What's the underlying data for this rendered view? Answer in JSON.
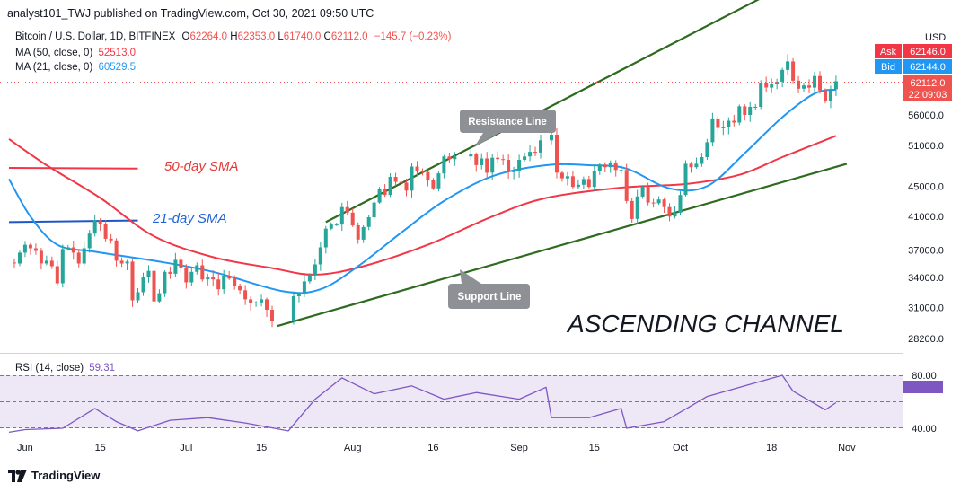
{
  "header": {
    "publisher": "analyst101_TWJ published on TradingView.com, Oct 30, 2021 09:50 UTC"
  },
  "symbol_line": {
    "name": "Bitcoin / U.S. Dollar, 1D, BITFINEX",
    "open_label": "O",
    "open": "62264.0",
    "high_label": "H",
    "high": "62353.0",
    "low_label": "L",
    "low": "61740.0",
    "close_label": "C",
    "close": "62112.0",
    "change": "−145.7 (−0.23%)"
  },
  "indicators": [
    {
      "label": "MA (50, close, 0)",
      "value": "52513.0",
      "color": "#f23645"
    },
    {
      "label": "MA (21, close, 0)",
      "value": "60529.5",
      "color": "#2196f3"
    }
  ],
  "rsi": {
    "label": "RSI (14, close)",
    "value": "59.31",
    "color": "#7e57c2",
    "levels": [
      "80.00",
      "40.00"
    ]
  },
  "currency": "USD",
  "quotes": {
    "ask_label": "Ask",
    "ask": "62146.0",
    "bid_label": "Bid",
    "bid": "62144.0",
    "last": "62112.0",
    "countdown": "22:09:03"
  },
  "annotations": {
    "sma50": "50-day SMA",
    "sma21": "21-day SMA",
    "resistance": "Resistance Line",
    "support": "Support Line",
    "title": "ASCENDING CHANNEL"
  },
  "colors": {
    "up": "#26a69a",
    "down": "#ef5350",
    "channel": "#2e6b1f",
    "ma50": "#f23645",
    "ma21": "#2196f3",
    "rsi": "#7e57c2",
    "rsi_band": "#ede7f6",
    "ask": "#f23645",
    "bid": "#2196f3"
  },
  "footer": {
    "brand": "TradingView"
  },
  "chart_data": {
    "type": "candlestick",
    "title": "Bitcoin / U.S. Dollar, 1D, BITFINEX",
    "y_ticks": [
      28200,
      31000,
      34000,
      37000,
      41000,
      45000,
      51000,
      56000
    ],
    "x_ticks": [
      "Jun",
      "15",
      "Jul",
      "15",
      "Aug",
      "16",
      "Sep",
      "15",
      "Oct",
      "18",
      "Nov"
    ],
    "rsi_ticks": [
      80,
      40
    ],
    "segments": [
      {
        "from": "2021-05-29",
        "to": "2021-06-14",
        "closes": [
          35600,
          35500,
          36700,
          37600,
          37200,
          36900,
          35500,
          35800,
          35200,
          33400,
          37100,
          37300,
          36700,
          35500,
          37200,
          38900,
          40500
        ]
      },
      {
        "from": "2021-06-14",
        "to": "2021-07-20",
        "closes": [
          40500,
          40100,
          38300,
          38100,
          35800,
          35500,
          35700,
          31700,
          32500,
          34000,
          34700,
          31600,
          32400,
          34600,
          34400,
          35900,
          35000,
          33500,
          34600,
          35300,
          33800,
          34100,
          33800,
          32800,
          34200,
          33900,
          33100,
          32700,
          31800,
          31400,
          31500,
          31800,
          30800,
          29800
        ]
      },
      {
        "from": "2021-07-20",
        "to": "2021-08-22",
        "closes": [
          29800,
          32100,
          32300,
          33600,
          34300,
          35400,
          37300,
          39500,
          40000,
          40000,
          42200,
          41500,
          39900,
          38200,
          39700,
          40900,
          42800,
          44600,
          43800,
          46300,
          45600,
          45500,
          44400,
          47800,
          47100,
          47000,
          45900,
          44700,
          46800,
          49300,
          48900,
          49300
        ]
      },
      {
        "from": "2021-08-22",
        "to": "2021-09-06",
        "closes": [
          49300,
          49600,
          48000,
          49000,
          46900,
          49100,
          48900,
          48800,
          47000,
          47100,
          48800,
          49300,
          50000,
          49900,
          51800
        ]
      },
      {
        "from": "2021-09-06",
        "to": "2021-09-28",
        "closes": [
          51800,
          52700,
          46900,
          46100,
          46400,
          44900,
          45200,
          46000,
          44900,
          47100,
          48100,
          47700,
          48300,
          47300,
          47300,
          43000,
          40700,
          43600,
          44900,
          42800,
          42700,
          43200,
          42200
        ]
      },
      {
        "from": "2021-09-28",
        "to": "2021-10-20",
        "closes": [
          42200,
          41000,
          41500,
          43800,
          48200,
          47700,
          48200,
          49200,
          51500,
          55400,
          53800,
          53900,
          55000,
          54700,
          57500,
          56000,
          57400,
          57400,
          61700,
          60900,
          61500,
          62000,
          64300
        ]
      },
      {
        "from": "2021-10-20",
        "to": "2021-10-30",
        "closes": [
          64300,
          66000,
          62200,
          60700,
          61300,
          60900,
          63100,
          60400,
          58400,
          60600,
          62100
        ]
      }
    ],
    "ma21": [
      {
        "date": "2021-05-29",
        "value": 46000
      },
      {
        "date": "2021-06-02",
        "value": 41000
      },
      {
        "date": "2021-06-07",
        "value": 37600
      },
      {
        "date": "2021-06-14",
        "value": 36800
      },
      {
        "date": "2021-06-25",
        "value": 35800
      },
      {
        "date": "2021-07-06",
        "value": 34600
      },
      {
        "date": "2021-07-19",
        "value": 32600
      },
      {
        "date": "2021-07-26",
        "value": 32800
      },
      {
        "date": "2021-08-02",
        "value": 35200
      },
      {
        "date": "2021-08-10",
        "value": 39000
      },
      {
        "date": "2021-08-18",
        "value": 43000
      },
      {
        "date": "2021-08-27",
        "value": 46400
      },
      {
        "date": "2021-09-06",
        "value": 48000
      },
      {
        "date": "2021-09-14",
        "value": 48000
      },
      {
        "date": "2021-09-21",
        "value": 47500
      },
      {
        "date": "2021-09-29",
        "value": 44700
      },
      {
        "date": "2021-10-06",
        "value": 45000
      },
      {
        "date": "2021-10-13",
        "value": 49800
      },
      {
        "date": "2021-10-20",
        "value": 55600
      },
      {
        "date": "2021-10-26",
        "value": 59800
      },
      {
        "date": "2021-10-30",
        "value": 60530
      }
    ],
    "ma50": [
      {
        "date": "2021-05-29",
        "value": 52000
      },
      {
        "date": "2021-06-05",
        "value": 48000
      },
      {
        "date": "2021-06-15",
        "value": 43400
      },
      {
        "date": "2021-06-25",
        "value": 38600
      },
      {
        "date": "2021-07-06",
        "value": 36200
      },
      {
        "date": "2021-07-17",
        "value": 35000
      },
      {
        "date": "2021-07-25",
        "value": 34300
      },
      {
        "date": "2021-08-03",
        "value": 35200
      },
      {
        "date": "2021-08-15",
        "value": 37600
      },
      {
        "date": "2021-08-27",
        "value": 41000
      },
      {
        "date": "2021-09-06",
        "value": 43400
      },
      {
        "date": "2021-09-20",
        "value": 44800
      },
      {
        "date": "2021-10-02",
        "value": 45300
      },
      {
        "date": "2021-10-12",
        "value": 46600
      },
      {
        "date": "2021-10-20",
        "value": 49200
      },
      {
        "date": "2021-10-30",
        "value": 52513
      }
    ],
    "sma50_note_line": [
      {
        "date": "2021-05-29",
        "value": 47600
      },
      {
        "date": "2021-06-22",
        "value": 47500
      }
    ],
    "sma21_note_line": [
      {
        "date": "2021-05-29",
        "value": 40300
      },
      {
        "date": "2021-06-22",
        "value": 40500
      }
    ],
    "resistance": [
      {
        "date": "2021-07-27",
        "value": 40300
      },
      {
        "date": "2021-10-23",
        "value": 85000
      }
    ],
    "support": [
      {
        "date": "2021-07-18",
        "value": 29300
      },
      {
        "date": "2021-11-01",
        "value": 48200
      }
    ],
    "rsi_series": [
      {
        "date": "2021-05-29",
        "value": 37
      },
      {
        "date": "2021-06-01",
        "value": 39
      },
      {
        "date": "2021-06-08",
        "value": 40
      },
      {
        "date": "2021-06-14",
        "value": 55
      },
      {
        "date": "2021-06-18",
        "value": 45
      },
      {
        "date": "2021-06-22",
        "value": 38
      },
      {
        "date": "2021-06-28",
        "value": 46
      },
      {
        "date": "2021-07-05",
        "value": 48
      },
      {
        "date": "2021-07-12",
        "value": 44
      },
      {
        "date": "2021-07-20",
        "value": 38
      },
      {
        "date": "2021-07-25",
        "value": 62
      },
      {
        "date": "2021-07-30",
        "value": 78
      },
      {
        "date": "2021-08-05",
        "value": 66
      },
      {
        "date": "2021-08-12",
        "value": 72
      },
      {
        "date": "2021-08-18",
        "value": 62
      },
      {
        "date": "2021-08-24",
        "value": 67
      },
      {
        "date": "2021-09-01",
        "value": 62
      },
      {
        "date": "2021-09-06",
        "value": 71
      },
      {
        "date": "2021-09-07",
        "value": 48
      },
      {
        "date": "2021-09-14",
        "value": 48
      },
      {
        "date": "2021-09-20",
        "value": 55
      },
      {
        "date": "2021-09-21",
        "value": 40
      },
      {
        "date": "2021-09-28",
        "value": 45
      },
      {
        "date": "2021-10-06",
        "value": 64
      },
      {
        "date": "2021-10-13",
        "value": 72
      },
      {
        "date": "2021-10-20",
        "value": 80
      },
      {
        "date": "2021-10-22",
        "value": 68
      },
      {
        "date": "2021-10-28",
        "value": 54
      },
      {
        "date": "2021-10-30",
        "value": 59.31
      }
    ]
  }
}
